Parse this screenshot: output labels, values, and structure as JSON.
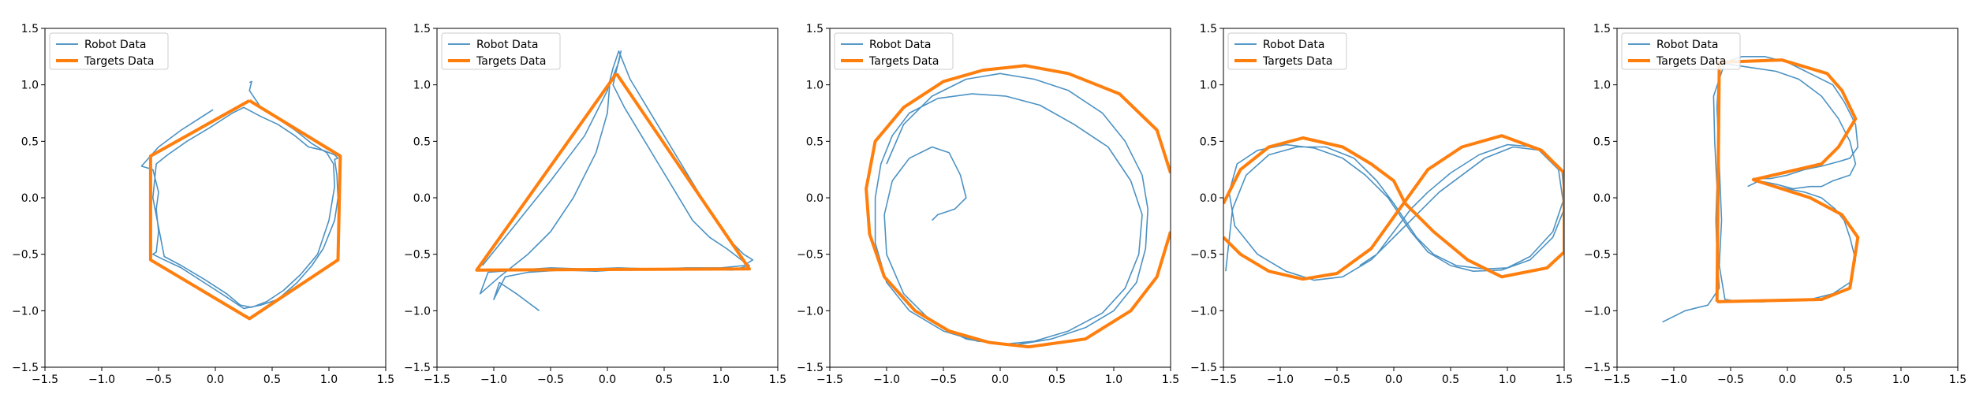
{
  "chart_data": [
    {
      "type": "line",
      "xlim": [
        -1.5,
        1.5
      ],
      "ylim": [
        -1.5,
        1.5
      ],
      "xticks": [
        "−1.5",
        "−1.0",
        "−0.5",
        "0.0",
        "0.5",
        "1.0",
        "1.5"
      ],
      "yticks": [
        "−1.5",
        "−1.0",
        "−0.5",
        "0.0",
        "0.5",
        "1.0",
        "1.5"
      ],
      "grid": false,
      "legend_position": "top-left",
      "series": [
        {
          "name": "Robot Data",
          "color": "#1f77b4",
          "x": [
            -0.02,
            -0.3,
            -0.5,
            -0.65,
            -0.55,
            -0.5,
            -0.52,
            -0.5,
            -0.52,
            -0.55,
            -0.45,
            -0.3,
            -0.1,
            0.1,
            0.25,
            0.4,
            0.55,
            0.72,
            0.85,
            0.95,
            1.05,
            1.08,
            1.07,
            1.05,
            1.08,
            1.05,
            0.95,
            0.82,
            0.7,
            0.55,
            0.4,
            0.25,
            0.15,
            -0.05,
            -0.25,
            -0.42,
            -0.52,
            -0.55,
            -0.45,
            -0.3,
            -0.1,
            0.1,
            0.22,
            0.32,
            0.45,
            0.6,
            0.75,
            0.9,
            1.0,
            1.05,
            1.04,
            0.98,
            0.85,
            0.7,
            0.55,
            0.4,
            0.3,
            0.32,
            0.3
          ],
          "y": [
            0.78,
            0.6,
            0.45,
            0.28,
            0.25,
            0.05,
            -0.1,
            -0.3,
            -0.48,
            -0.5,
            -0.55,
            -0.62,
            -0.75,
            -0.88,
            -0.98,
            -0.95,
            -0.9,
            -0.75,
            -0.6,
            -0.45,
            -0.2,
            0.0,
            0.2,
            0.34,
            0.35,
            0.38,
            0.42,
            0.45,
            0.55,
            0.65,
            0.72,
            0.8,
            0.75,
            0.62,
            0.5,
            0.38,
            0.3,
            0.0,
            -0.52,
            -0.6,
            -0.72,
            -0.85,
            -0.95,
            -0.97,
            -0.92,
            -0.82,
            -0.68,
            -0.5,
            -0.2,
            0.1,
            0.3,
            0.4,
            0.48,
            0.6,
            0.7,
            0.8,
            0.95,
            1.03,
            1.02
          ]
        },
        {
          "name": "Targets Data",
          "color": "#ff7f0e",
          "x": [
            0.3,
            1.1,
            1.08,
            0.3,
            -0.57,
            -0.57,
            0.3
          ],
          "y": [
            0.86,
            0.37,
            -0.55,
            -1.07,
            -0.55,
            0.37,
            0.86
          ]
        }
      ]
    },
    {
      "type": "line",
      "xlim": [
        -1.5,
        1.5
      ],
      "ylim": [
        -1.5,
        1.5
      ],
      "xticks": [
        "−1.5",
        "−1.0",
        "−0.5",
        "0.0",
        "0.5",
        "1.0",
        "1.5"
      ],
      "yticks": [
        "−1.5",
        "−1.0",
        "−0.5",
        "0.0",
        "0.5",
        "1.0",
        "1.5"
      ],
      "grid": false,
      "legend_position": "top-left",
      "series": [
        {
          "name": "Robot Data",
          "color": "#1f77b4",
          "x": [
            -1.1,
            -0.9,
            -0.7,
            -0.5,
            -0.35,
            -0.2,
            -0.1,
            0.0,
            0.05,
            0.1,
            0.2,
            0.35,
            0.5,
            0.65,
            0.8,
            0.95,
            1.1,
            1.2,
            1.28,
            1.2,
            1.0,
            0.7,
            0.4,
            0.1,
            -0.2,
            -0.5,
            -0.8,
            -1.05,
            -1.12,
            -0.95,
            -0.7,
            -0.5,
            -0.3,
            -0.1,
            0.0,
            0.02,
            0.1,
            0.12,
            0.05,
            0.15,
            0.3,
            0.45,
            0.6,
            0.75,
            0.9,
            1.05,
            1.18,
            1.25,
            1.1,
            0.8,
            0.5,
            0.2,
            -0.1,
            -0.4,
            -0.7,
            -0.9,
            -1.0,
            -0.95,
            -0.8,
            -0.6
          ],
          "y": [
            -0.6,
            -0.35,
            -0.1,
            0.15,
            0.35,
            0.55,
            0.75,
            0.95,
            1.15,
            1.3,
            1.05,
            0.8,
            0.55,
            0.3,
            0.05,
            -0.2,
            -0.4,
            -0.5,
            -0.55,
            -0.6,
            -0.62,
            -0.62,
            -0.63,
            -0.62,
            -0.63,
            -0.62,
            -0.64,
            -0.66,
            -0.85,
            -0.7,
            -0.5,
            -0.3,
            0.0,
            0.4,
            0.75,
            1.0,
            1.2,
            1.3,
            1.0,
            0.8,
            0.55,
            0.3,
            0.05,
            -0.2,
            -0.35,
            -0.45,
            -0.55,
            -0.6,
            -0.64,
            -0.63,
            -0.64,
            -0.63,
            -0.65,
            -0.64,
            -0.66,
            -0.7,
            -0.9,
            -0.75,
            -0.85,
            -1.0
          ]
        },
        {
          "name": "Targets Data",
          "color": "#ff7f0e",
          "x": [
            0.08,
            1.25,
            -1.15,
            0.08
          ],
          "y": [
            1.1,
            -0.63,
            -0.64,
            1.1
          ]
        }
      ]
    },
    {
      "type": "line",
      "xlim": [
        -1.5,
        1.5
      ],
      "ylim": [
        -1.5,
        1.5
      ],
      "xticks": [
        "−1.5",
        "−1.0",
        "−0.5",
        "0.0",
        "0.5",
        "1.0",
        "1.5"
      ],
      "yticks": [
        "−1.5",
        "−1.0",
        "−0.5",
        "0.0",
        "0.5",
        "1.0",
        "1.5"
      ],
      "grid": false,
      "legend_position": "top-left",
      "series": [
        {
          "name": "Robot Data",
          "color": "#1f77b4",
          "x": [
            -1.0,
            -0.85,
            -0.6,
            -0.3,
            0.0,
            0.3,
            0.6,
            0.9,
            1.1,
            1.25,
            1.3,
            1.28,
            1.2,
            1.0,
            0.75,
            0.45,
            0.15,
            -0.2,
            -0.5,
            -0.8,
            -1.0,
            -1.1,
            -1.1,
            -1.05,
            -0.95,
            -0.8,
            -0.55,
            -0.25,
            0.05,
            0.35,
            0.65,
            0.95,
            1.15,
            1.25,
            1.22,
            1.1,
            0.9,
            0.6,
            0.3,
            0.0,
            -0.3,
            -0.6,
            -0.85,
            -1.0,
            -1.02,
            -0.95,
            -0.8,
            -0.6,
            -0.45,
            -0.35,
            -0.3,
            -0.4,
            -0.55,
            -0.6
          ],
          "y": [
            0.3,
            0.65,
            0.9,
            1.05,
            1.1,
            1.05,
            0.95,
            0.75,
            0.5,
            0.2,
            -0.1,
            -0.45,
            -0.75,
            -1.0,
            -1.15,
            -1.25,
            -1.3,
            -1.27,
            -1.18,
            -1.0,
            -0.75,
            -0.4,
            0.0,
            0.3,
            0.55,
            0.75,
            0.88,
            0.92,
            0.9,
            0.82,
            0.65,
            0.45,
            0.15,
            -0.15,
            -0.5,
            -0.8,
            -1.02,
            -1.18,
            -1.27,
            -1.3,
            -1.25,
            -1.1,
            -0.85,
            -0.5,
            -0.15,
            0.15,
            0.35,
            0.45,
            0.4,
            0.2,
            0.0,
            -0.1,
            -0.15,
            -0.2
          ]
        },
        {
          "name": "Targets Data",
          "color": "#ff7f0e",
          "x": [
            1.5,
            1.38,
            1.05,
            0.6,
            0.22,
            -0.15,
            -0.5,
            -0.85,
            -1.1,
            -1.18,
            -1.15,
            -1.02,
            -0.75,
            -0.45,
            -0.1,
            0.25,
            0.75,
            1.15,
            1.38,
            1.5
          ],
          "y": [
            0.22,
            0.6,
            0.92,
            1.1,
            1.17,
            1.13,
            1.03,
            0.8,
            0.5,
            0.08,
            -0.32,
            -0.7,
            -1.0,
            -1.18,
            -1.28,
            -1.32,
            -1.25,
            -1.0,
            -0.7,
            -0.3
          ]
        }
      ]
    },
    {
      "type": "line",
      "xlim": [
        -1.5,
        1.5
      ],
      "ylim": [
        -1.5,
        1.5
      ],
      "xticks": [
        "−1.5",
        "−1.0",
        "−0.5",
        "0.0",
        "0.5",
        "1.0",
        "1.5"
      ],
      "yticks": [
        "−1.5",
        "−1.0",
        "−0.5",
        "0.0",
        "0.5",
        "1.0",
        "1.5"
      ],
      "grid": false,
      "legend_position": "top-left",
      "series": [
        {
          "name": "Robot Data",
          "color": "#1f77b4",
          "x": [
            -1.48,
            -1.42,
            -1.3,
            -1.1,
            -0.85,
            -0.6,
            -0.35,
            -0.15,
            0.0,
            0.1,
            0.2,
            0.35,
            0.55,
            0.8,
            1.0,
            1.2,
            1.4,
            1.5,
            1.48,
            1.3,
            1.05,
            0.8,
            0.6,
            0.4,
            0.25,
            0.1,
            -0.05,
            -0.2,
            -0.45,
            -0.7,
            -0.95,
            -1.2,
            -1.4,
            -1.45,
            -1.38,
            -1.2,
            -0.95,
            -0.7,
            -0.45,
            -0.25,
            -0.05,
            0.05,
            0.15,
            0.3,
            0.5,
            0.7,
            0.95,
            1.2,
            1.4,
            1.5,
            1.45,
            1.25,
            1.0,
            0.75,
            0.5,
            0.3,
            0.15,
            0.0,
            -0.15,
            -0.3
          ],
          "y": [
            -0.65,
            -0.1,
            0.2,
            0.38,
            0.45,
            0.45,
            0.35,
            0.15,
            -0.05,
            -0.2,
            -0.35,
            -0.5,
            -0.6,
            -0.63,
            -0.62,
            -0.52,
            -0.3,
            0.0,
            0.25,
            0.42,
            0.45,
            0.35,
            0.2,
            0.05,
            -0.1,
            -0.25,
            -0.4,
            -0.55,
            -0.7,
            -0.73,
            -0.65,
            -0.5,
            -0.25,
            0.05,
            0.3,
            0.42,
            0.47,
            0.44,
            0.35,
            0.2,
            0.0,
            -0.15,
            -0.3,
            -0.48,
            -0.6,
            -0.65,
            -0.64,
            -0.55,
            -0.35,
            -0.1,
            0.25,
            0.45,
            0.47,
            0.38,
            0.22,
            0.05,
            -0.1,
            -0.3,
            -0.5,
            -0.6
          ]
        },
        {
          "name": "Targets Data",
          "color": "#ff7f0e",
          "x": [
            -1.5,
            -1.35,
            -1.1,
            -0.8,
            -0.45,
            -0.2,
            0.0,
            0.1,
            0.35,
            0.65,
            0.95,
            1.35,
            1.5,
            1.5,
            1.3,
            0.95,
            0.6,
            0.3,
            0.05,
            -0.2,
            -0.5,
            -0.8,
            -1.1,
            -1.35,
            -1.5
          ],
          "y": [
            -0.05,
            0.25,
            0.45,
            0.53,
            0.45,
            0.3,
            0.15,
            -0.05,
            -0.3,
            -0.55,
            -0.7,
            -0.62,
            -0.48,
            0.22,
            0.42,
            0.55,
            0.45,
            0.25,
            -0.1,
            -0.45,
            -0.67,
            -0.72,
            -0.65,
            -0.5,
            -0.35
          ]
        }
      ]
    },
    {
      "type": "line",
      "xlim": [
        -1.5,
        1.5
      ],
      "ylim": [
        -1.5,
        1.5
      ],
      "xticks": [
        "−1.5",
        "−1.0",
        "−0.5",
        "0.0",
        "0.5",
        "1.0",
        "1.5"
      ],
      "yticks": [
        "−1.5",
        "−1.0",
        "−0.5",
        "0.0",
        "0.5",
        "1.0",
        "1.5"
      ],
      "grid": false,
      "legend_position": "top-left",
      "series": [
        {
          "name": "Robot Data",
          "color": "#1f77b4",
          "x": [
            -1.1,
            -0.9,
            -0.7,
            -0.6,
            -0.62,
            -0.63,
            -0.62,
            -0.64,
            -0.65,
            -0.55,
            -0.4,
            -0.2,
            0.0,
            0.2,
            0.4,
            0.5,
            0.6,
            0.62,
            0.55,
            0.45,
            0.3,
            0.15,
            0.0,
            -0.15,
            -0.3,
            -0.2,
            0.0,
            0.15,
            0.3,
            0.42,
            0.5,
            0.55,
            0.6,
            0.55,
            0.4,
            0.2,
            0.0,
            -0.2,
            -0.4,
            -0.55,
            -0.6,
            -0.58,
            -0.6,
            -0.62,
            -0.6,
            -0.5,
            -0.3,
            -0.1,
            0.1,
            0.3,
            0.45,
            0.55,
            0.6,
            0.55,
            0.4,
            0.3,
            0.2,
            0.05,
            -0.1,
            -0.25,
            -0.35
          ],
          "y": [
            -1.1,
            -1.0,
            -0.95,
            -0.8,
            -0.5,
            -0.2,
            0.1,
            0.5,
            0.9,
            1.2,
            1.25,
            1.25,
            1.2,
            1.1,
            1.0,
            0.85,
            0.65,
            0.45,
            0.35,
            0.32,
            0.28,
            0.25,
            0.2,
            0.17,
            0.17,
            0.12,
            0.08,
            0.05,
            0.0,
            -0.1,
            -0.2,
            -0.35,
            -0.55,
            -0.75,
            -0.85,
            -0.9,
            -0.9,
            -0.92,
            -0.92,
            -0.9,
            -0.6,
            -0.2,
            0.3,
            0.8,
            1.2,
            1.18,
            1.15,
            1.12,
            1.05,
            0.9,
            0.7,
            0.5,
            0.3,
            0.2,
            0.15,
            0.1,
            0.1,
            0.08,
            0.12,
            0.15,
            0.1
          ]
        },
        {
          "name": "Targets Data",
          "color": "#ff7f0e",
          "x": [
            -0.62,
            -0.6,
            -0.05,
            0.35,
            0.48,
            0.6,
            0.45,
            0.3,
            -0.3,
            0.2,
            0.48,
            0.62,
            0.55,
            0.3,
            -0.62,
            -0.62
          ],
          "y": [
            -0.92,
            1.2,
            1.22,
            1.1,
            0.95,
            0.7,
            0.45,
            0.3,
            0.16,
            0.0,
            -0.15,
            -0.35,
            -0.8,
            -0.9,
            -0.92,
            -0.92
          ]
        }
      ]
    }
  ]
}
